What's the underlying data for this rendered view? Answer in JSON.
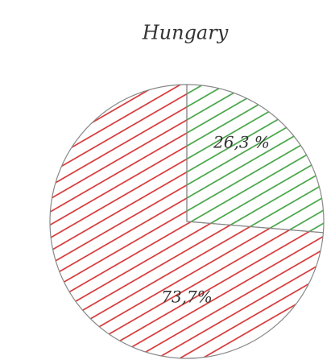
{
  "chart_data": {
    "type": "pie",
    "title": "Hungary",
    "values": [
      26.3,
      73.7
    ],
    "value_labels": [
      "26,3 %",
      "73,7%"
    ],
    "colors": [
      "#3a9e3a",
      "#d42a2a"
    ]
  }
}
